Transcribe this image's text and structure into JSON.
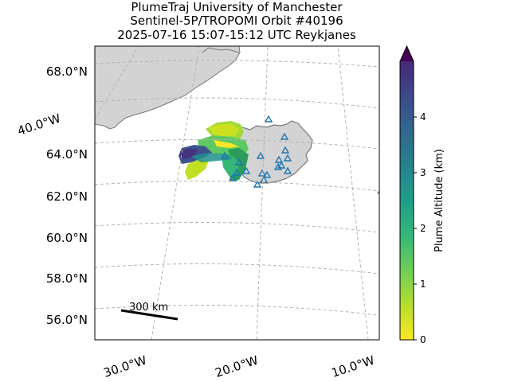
{
  "title": {
    "line1": "PlumeTraj    University of Manchester",
    "line2": "Sentinel-5P/TROPOMI Orbit #40196",
    "line3": "2025-07-16   15:07-15:12 UTC   Reykjanes"
  },
  "map": {
    "lat_labels": [
      "68.0°N",
      "64.0°N",
      "62.0°N",
      "60.0°N",
      "58.0°N",
      "56.0°N"
    ],
    "lon_labels": [
      "40.0°W",
      "30.0°W",
      "20.0°W",
      "10.0°W"
    ],
    "scale_bar_label": "300 km",
    "land_color": "#d3d3d3",
    "coast_color": "#777777",
    "grid_color": "#b4b4b4"
  },
  "colorbar": {
    "label": "Plume Altitude (km)",
    "ticks": [
      "0",
      "1",
      "2",
      "3",
      "4"
    ],
    "range_km": [
      0,
      5
    ],
    "colormap": "viridis_r",
    "extend": "max"
  }
}
